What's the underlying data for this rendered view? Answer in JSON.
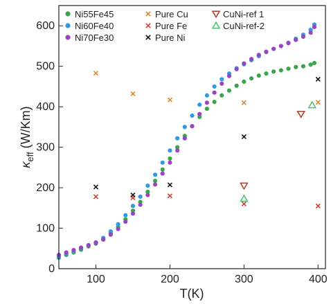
{
  "chart_data": {
    "type": "scatter",
    "title": "",
    "xlabel": "T(K)",
    "ylabel_main": "κ",
    "ylabel_sub": "eff",
    "ylabel_unit": " (W/Km)",
    "xlim": [
      50,
      410
    ],
    "ylim": [
      0,
      650
    ],
    "x_ticks": [
      100,
      200,
      300,
      400
    ],
    "y_ticks": [
      0,
      100,
      200,
      300,
      400,
      500,
      600
    ],
    "grid": false,
    "legend_position": "top-left",
    "series": [
      {
        "name": "Ni55Fe45",
        "marker": "circle",
        "color": "#3aa64a",
        "points": [
          [
            50,
            27
          ],
          [
            60,
            34
          ],
          [
            70,
            40
          ],
          [
            80,
            47
          ],
          [
            90,
            55
          ],
          [
            100,
            62
          ],
          [
            110,
            72
          ],
          [
            120,
            87
          ],
          [
            130,
            103
          ],
          [
            140,
            122
          ],
          [
            150,
            143
          ],
          [
            160,
            165
          ],
          [
            170,
            190
          ],
          [
            180,
            217
          ],
          [
            190,
            245
          ],
          [
            200,
            272
          ],
          [
            210,
            300
          ],
          [
            220,
            328
          ],
          [
            230,
            352
          ],
          [
            240,
            375
          ],
          [
            250,
            395
          ],
          [
            260,
            412
          ],
          [
            270,
            428
          ],
          [
            280,
            440
          ],
          [
            290,
            452
          ],
          [
            300,
            462
          ],
          [
            310,
            470
          ],
          [
            320,
            477
          ],
          [
            330,
            482
          ],
          [
            340,
            487
          ],
          [
            350,
            490
          ],
          [
            360,
            494
          ],
          [
            370,
            498
          ],
          [
            380,
            500
          ],
          [
            390,
            504
          ],
          [
            395,
            508
          ]
        ]
      },
      {
        "name": "Ni60Fe40",
        "marker": "circle",
        "color": "#2f9be0",
        "points": [
          [
            50,
            30
          ],
          [
            60,
            37
          ],
          [
            70,
            44
          ],
          [
            80,
            51
          ],
          [
            90,
            58
          ],
          [
            100,
            65
          ],
          [
            110,
            76
          ],
          [
            120,
            92
          ],
          [
            130,
            110
          ],
          [
            140,
            132
          ],
          [
            150,
            155
          ],
          [
            160,
            178
          ],
          [
            170,
            205
          ],
          [
            180,
            232
          ],
          [
            190,
            262
          ],
          [
            200,
            292
          ],
          [
            210,
            322
          ],
          [
            220,
            350
          ],
          [
            230,
            378
          ],
          [
            240,
            405
          ],
          [
            250,
            428
          ],
          [
            260,
            450
          ],
          [
            270,
            468
          ],
          [
            280,
            482
          ],
          [
            290,
            495
          ],
          [
            300,
            505
          ],
          [
            310,
            515
          ],
          [
            320,
            525
          ],
          [
            330,
            535
          ],
          [
            340,
            543
          ],
          [
            350,
            550
          ],
          [
            360,
            558
          ],
          [
            370,
            568
          ],
          [
            380,
            578
          ],
          [
            390,
            590
          ],
          [
            395,
            603
          ]
        ]
      },
      {
        "name": "Ni70Fe30",
        "marker": "circle",
        "color": "#9a44bf",
        "points": [
          [
            50,
            34
          ],
          [
            60,
            40
          ],
          [
            70,
            46
          ],
          [
            80,
            52
          ],
          [
            90,
            58
          ],
          [
            100,
            64
          ],
          [
            110,
            72
          ],
          [
            120,
            84
          ],
          [
            130,
            98
          ],
          [
            140,
            116
          ],
          [
            150,
            136
          ],
          [
            160,
            158
          ],
          [
            170,
            182
          ],
          [
            180,
            208
          ],
          [
            190,
            235
          ],
          [
            200,
            262
          ],
          [
            210,
            292
          ],
          [
            220,
            322
          ],
          [
            230,
            352
          ],
          [
            240,
            382
          ],
          [
            250,
            410
          ],
          [
            260,
            435
          ],
          [
            270,
            457
          ],
          [
            280,
            476
          ],
          [
            290,
            493
          ],
          [
            300,
            507
          ],
          [
            310,
            518
          ],
          [
            320,
            528
          ],
          [
            330,
            536
          ],
          [
            340,
            543
          ],
          [
            350,
            550
          ],
          [
            360,
            557
          ],
          [
            370,
            565
          ],
          [
            380,
            573
          ],
          [
            390,
            583
          ],
          [
            395,
            597
          ]
        ]
      },
      {
        "name": "Pure Cu",
        "marker": "x",
        "color": "#e0892e",
        "points": [
          [
            100,
            483
          ],
          [
            150,
            432
          ],
          [
            200,
            417
          ],
          [
            300,
            410
          ],
          [
            400,
            411
          ]
        ]
      },
      {
        "name": "Pure Fe",
        "marker": "x",
        "color": "#d63b2f",
        "points": [
          [
            100,
            178
          ],
          [
            150,
            175
          ],
          [
            200,
            180
          ],
          [
            300,
            160
          ],
          [
            400,
            155
          ]
        ]
      },
      {
        "name": "Pure Ni",
        "marker": "x",
        "color": "#111111",
        "points": [
          [
            100,
            202
          ],
          [
            150,
            182
          ],
          [
            200,
            207
          ],
          [
            300,
            326
          ],
          [
            400,
            468
          ]
        ]
      },
      {
        "name": "CuNi-ref 1",
        "marker": "triangle-down",
        "color": "#b23a2a",
        "points": [
          [
            300,
            205
          ],
          [
            377,
            382
          ]
        ]
      },
      {
        "name": "CuNi-ref-2",
        "marker": "triangle-up",
        "color": "#4ac26a",
        "points": [
          [
            300,
            173
          ],
          [
            392,
            404
          ]
        ]
      }
    ]
  }
}
